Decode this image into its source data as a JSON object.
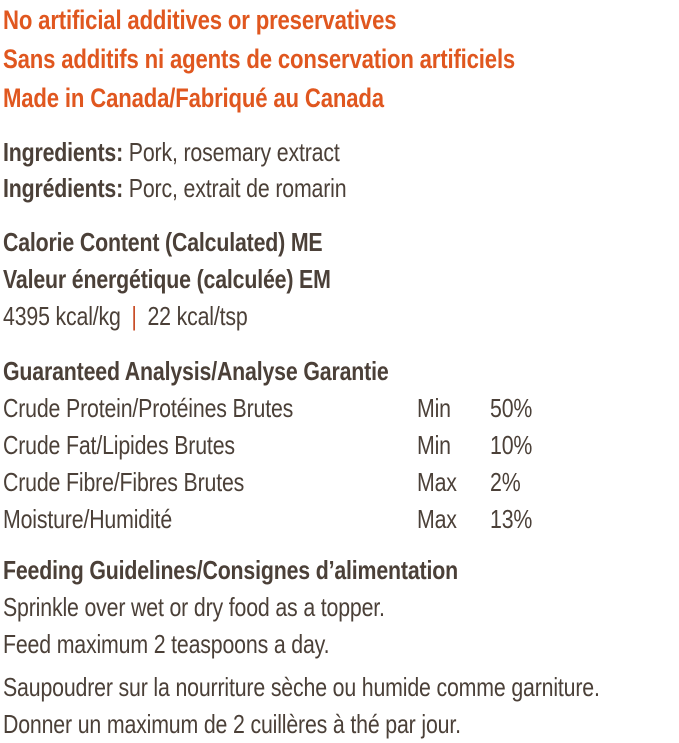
{
  "colors": {
    "accent_orange": "#e0571f",
    "text_dark": "#4b4038",
    "separator_orange": "#c94e28",
    "background": "#ffffff"
  },
  "claims": {
    "line1": "No artificial additives or preservatives",
    "line2": "Sans additifs ni agents de conservation artificiels",
    "line3": "Made in Canada/Fabriqué au Canada"
  },
  "ingredients": {
    "en_label": "Ingredients:",
    "en_value": " Pork, rosemary extract",
    "fr_label": "Ingrédients:",
    "fr_value": " Porc, extrait de romarin"
  },
  "calories": {
    "title_en": "Calorie Content (Calculated) ME",
    "title_fr": "Valeur énergétique (calculée) EM",
    "value_per_kg": "4395 kcal/kg",
    "separator": "|",
    "value_per_tsp": "22 kcal/tsp"
  },
  "guaranteed_analysis": {
    "title": "Guaranteed Analysis/Analyse Garantie",
    "rows": [
      {
        "nutrient": "Crude Protein/Protéines Brutes",
        "qualifier": "Min",
        "value": "50%"
      },
      {
        "nutrient": "Crude Fat/Lipides Brutes",
        "qualifier": "Min",
        "value": "10%"
      },
      {
        "nutrient": "Crude Fibre/Fibres Brutes",
        "qualifier": "Max",
        "value": "2%"
      },
      {
        "nutrient": "Moisture/Humidité",
        "qualifier": "Max",
        "value": "13%"
      }
    ]
  },
  "feeding": {
    "title": "Feeding Guidelines/Consignes d’alimentation",
    "en_line1": "Sprinkle over wet or dry food as a topper.",
    "en_line2": "Feed maximum 2 teaspoons a day.",
    "fr_line1": "Saupoudrer sur la nourriture sèche ou humide comme garniture.",
    "fr_line2": "Donner un maximum de 2 cuillères à thé par jour."
  }
}
